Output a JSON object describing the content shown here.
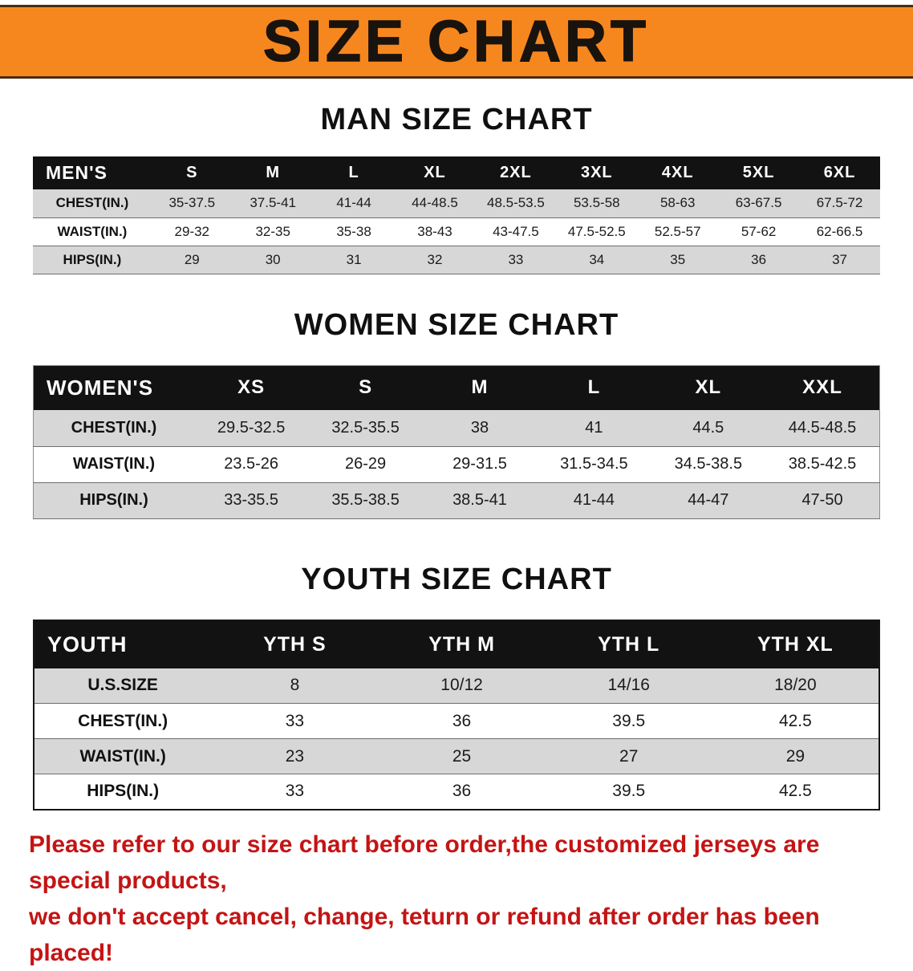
{
  "banner": {
    "title": "SIZE CHART"
  },
  "colors": {
    "banner_bg": "#f6871f",
    "banner_text": "#19130e",
    "header_bg": "#121212",
    "header_text": "#ffffff",
    "row_shade": "#d7d7d7",
    "note_color": "#c41414"
  },
  "chart_data": [
    {
      "type": "table",
      "title": "MAN SIZE CHART",
      "columns": [
        "MEN'S",
        "S",
        "M",
        "L",
        "XL",
        "2XL",
        "3XL",
        "4XL",
        "5XL",
        "6XL"
      ],
      "rows": [
        [
          "CHEST(IN.)",
          "35-37.5",
          "37.5-41",
          "41-44",
          "44-48.5",
          "48.5-53.5",
          "53.5-58",
          "58-63",
          "63-67.5",
          "67.5-72"
        ],
        [
          "WAIST(IN.)",
          "29-32",
          "32-35",
          "35-38",
          "38-43",
          "43-47.5",
          "47.5-52.5",
          "52.5-57",
          "57-62",
          "62-66.5"
        ],
        [
          "HIPS(IN.)",
          "29",
          "30",
          "31",
          "32",
          "33",
          "34",
          "35",
          "36",
          "37"
        ]
      ]
    },
    {
      "type": "table",
      "title": "WOMEN SIZE CHART",
      "columns": [
        "WOMEN'S",
        "XS",
        "S",
        "M",
        "L",
        "XL",
        "XXL"
      ],
      "rows": [
        [
          "CHEST(IN.)",
          "29.5-32.5",
          "32.5-35.5",
          "38",
          "41",
          "44.5",
          "44.5-48.5"
        ],
        [
          "WAIST(IN.)",
          "23.5-26",
          "26-29",
          "29-31.5",
          "31.5-34.5",
          "34.5-38.5",
          "38.5-42.5"
        ],
        [
          "HIPS(IN.)",
          "33-35.5",
          "35.5-38.5",
          "38.5-41",
          "41-44",
          "44-47",
          "47-50"
        ]
      ]
    },
    {
      "type": "table",
      "title": "YOUTH SIZE CHART",
      "columns": [
        "YOUTH",
        "YTH S",
        "YTH M",
        "YTH L",
        "YTH XL"
      ],
      "rows": [
        [
          "U.S.SIZE",
          "8",
          "10/12",
          "14/16",
          "18/20"
        ],
        [
          "CHEST(IN.)",
          "33",
          "36",
          "39.5",
          "42.5"
        ],
        [
          "WAIST(IN.)",
          "23",
          "25",
          "27",
          "29"
        ],
        [
          "HIPS(IN.)",
          "33",
          "36",
          "39.5",
          "42.5"
        ]
      ]
    }
  ],
  "footer": {
    "lines": [
      "Please refer to our size chart before order,the customized jerseys are special products,",
      "we don't accept cancel, change, teturn or refund after order has been placed!"
    ]
  }
}
